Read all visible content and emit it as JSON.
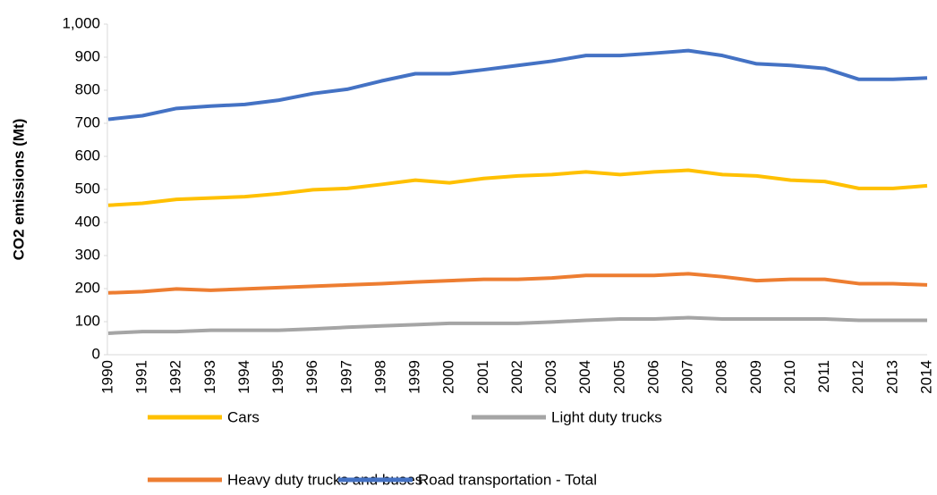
{
  "chart_data": {
    "type": "line",
    "y_label": "CO2 emissions  (Mt)",
    "x": [
      "1990",
      "1991",
      "1992",
      "1993",
      "1994",
      "1995",
      "1996",
      "1997",
      "1998",
      "1999",
      "2000",
      "2001",
      "2002",
      "2003",
      "2004",
      "2005",
      "2006",
      "2007",
      "2008",
      "2009",
      "2010",
      "2011",
      "2012",
      "2013",
      "2014"
    ],
    "series": [
      {
        "name": "Cars",
        "color": "#ffc000",
        "values": [
          452,
          458,
          470,
          474,
          478,
          487,
          499,
          503,
          515,
          528,
          520,
          533,
          541,
          545,
          553,
          545,
          553,
          558,
          545,
          541,
          528,
          524,
          503,
          503,
          511
        ]
      },
      {
        "name": "Light duty trucks",
        "color": "#a5a5a5",
        "values": [
          65,
          70,
          70,
          74,
          74,
          74,
          78,
          83,
          87,
          91,
          95,
          95,
          95,
          99,
          104,
          108,
          108,
          112,
          108,
          108,
          108,
          108,
          104,
          104,
          104
        ]
      },
      {
        "name": "Heavy duty trucks and buses",
        "color": "#ed7d31",
        "values": [
          187,
          191,
          199,
          195,
          199,
          203,
          207,
          211,
          215,
          220,
          224,
          228,
          228,
          232,
          240,
          240,
          240,
          245,
          236,
          224,
          228,
          228,
          215,
          215,
          211
        ]
      },
      {
        "name": "Road transportation - Total",
        "color": "#4472c4",
        "values": [
          712,
          723,
          745,
          752,
          757,
          770,
          790,
          803,
          828,
          850,
          850,
          862,
          875,
          888,
          905,
          905,
          912,
          920,
          905,
          880,
          875,
          866,
          833,
          833,
          837
        ]
      }
    ],
    "ylim": [
      0,
      1000
    ],
    "yticks": [
      0,
      100,
      200,
      300,
      400,
      500,
      600,
      700,
      800,
      900,
      {
        "value": 1000,
        "label": "1,000"
      }
    ],
    "grid": false,
    "legend": "bottom"
  }
}
